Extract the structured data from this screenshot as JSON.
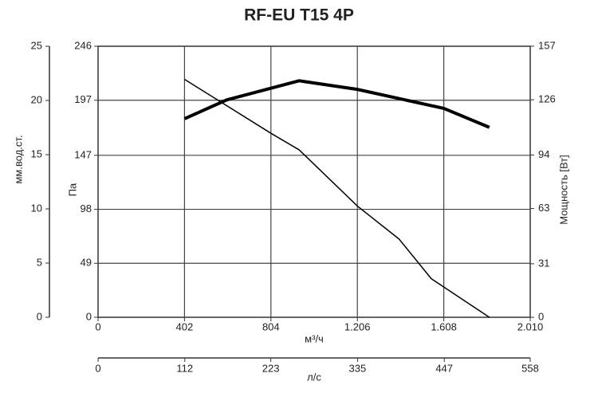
{
  "chart_data": {
    "type": "line",
    "title": "RF-EU T15 4P",
    "xlabel": "м³/ч",
    "ylabel": "Па",
    "y2label": "Мощность [Вт]",
    "y3label": "мм.вод.ст.",
    "x2label": "л/с",
    "xlim": [
      0,
      2010
    ],
    "xticks": [
      0,
      402,
      804,
      {
        "value": 1206,
        "label": "1.206"
      },
      {
        "value": 1608,
        "label": "1.608"
      },
      {
        "value": 2010,
        "label": "2.010"
      }
    ],
    "x2lim": [
      0,
      558
    ],
    "x2ticks": [
      0,
      112,
      223,
      335,
      447,
      558
    ],
    "ylim": [
      0,
      246
    ],
    "yticks": [
      0,
      49,
      98,
      147,
      197,
      246
    ],
    "y2lim": [
      0,
      157
    ],
    "y2ticks": [
      0,
      31,
      63,
      94,
      126,
      157
    ],
    "y3lim": [
      0,
      25
    ],
    "y3ticks": [
      0,
      5,
      10,
      15,
      20,
      25
    ],
    "grid": true,
    "series": [
      {
        "color": "#000000",
        "width": 1.5,
        "x": [
          402,
          804,
          935,
          1206,
          1400,
          1550,
          1820
        ],
        "values": [
          216,
          167,
          152,
          101,
          71,
          35,
          0
        ]
      },
      {
        "color": "#000000",
        "width": 4,
        "axis": "y2",
        "x": [
          402,
          600,
          935,
          1206,
          1608,
          1820
        ],
        "values": [
          115,
          126,
          137,
          132,
          121,
          110
        ]
      }
    ]
  }
}
